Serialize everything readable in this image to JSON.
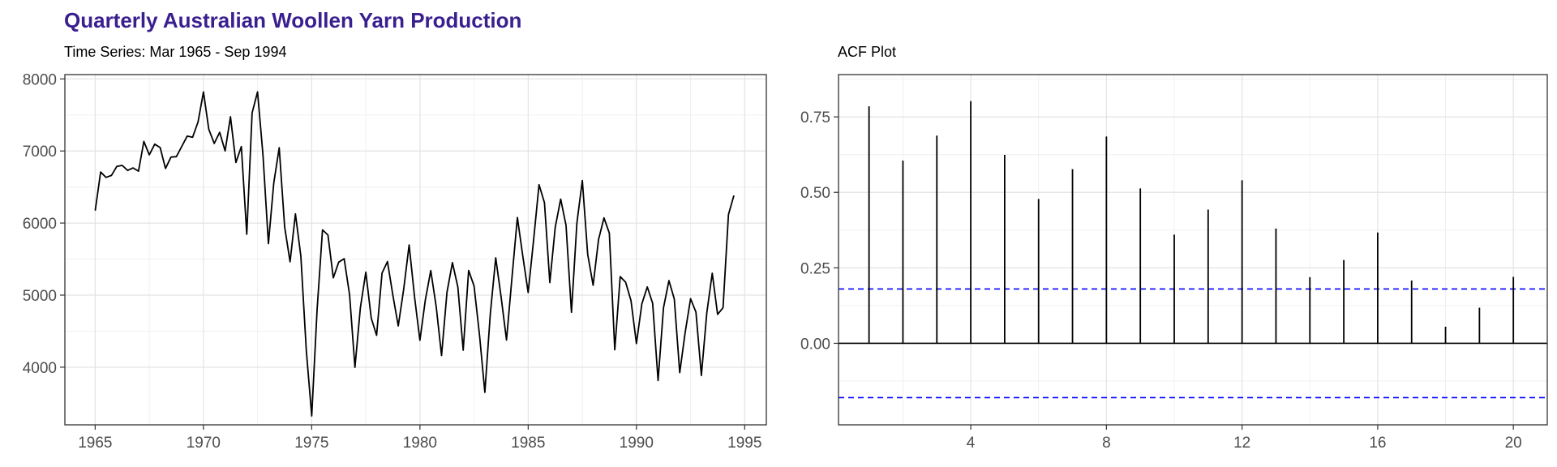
{
  "page_title": "Quarterly Australian Woollen Yarn Production",
  "chart_data": [
    {
      "type": "line",
      "subtitle": "Time Series: Mar 1965 - Sep 1994",
      "xlim": [
        1963.6,
        1996.0
      ],
      "ylim": [
        3200,
        8060
      ],
      "xticks": [
        1965,
        1970,
        1975,
        1980,
        1985,
        1990,
        1995
      ],
      "yticks": [
        4000,
        5000,
        6000,
        7000,
        8000
      ],
      "grid": true,
      "x": [
        1965.0,
        1965.25,
        1965.5,
        1965.75,
        1966.0,
        1966.25,
        1966.5,
        1966.75,
        1967.0,
        1967.25,
        1967.5,
        1967.75,
        1968.0,
        1968.25,
        1968.5,
        1968.75,
        1969.0,
        1969.25,
        1969.5,
        1969.75,
        1970.0,
        1970.25,
        1970.5,
        1970.75,
        1971.0,
        1971.25,
        1971.5,
        1971.75,
        1972.0,
        1972.25,
        1972.5,
        1972.75,
        1973.0,
        1973.25,
        1973.5,
        1973.75,
        1974.0,
        1974.25,
        1974.5,
        1974.75,
        1975.0,
        1975.25,
        1975.5,
        1975.75,
        1976.0,
        1976.25,
        1976.5,
        1976.75,
        1977.0,
        1977.25,
        1977.5,
        1977.75,
        1978.0,
        1978.25,
        1978.5,
        1978.75,
        1979.0,
        1979.25,
        1979.5,
        1979.75,
        1980.0,
        1980.25,
        1980.5,
        1980.75,
        1981.0,
        1981.25,
        1981.5,
        1981.75,
        1982.0,
        1982.25,
        1982.5,
        1982.75,
        1983.0,
        1983.25,
        1983.5,
        1983.75,
        1984.0,
        1984.25,
        1984.5,
        1984.75,
        1985.0,
        1985.25,
        1985.5,
        1985.75,
        1986.0,
        1986.25,
        1986.5,
        1986.75,
        1987.0,
        1987.25,
        1987.5,
        1987.75,
        1988.0,
        1988.25,
        1988.5,
        1988.75,
        1989.0,
        1989.25,
        1989.5,
        1989.75,
        1990.0,
        1990.25,
        1990.5,
        1990.75,
        1991.0,
        1991.25,
        1991.5,
        1991.75,
        1992.0,
        1992.25,
        1992.5,
        1992.75,
        1993.0,
        1993.25,
        1993.5,
        1993.75,
        1994.0,
        1994.25,
        1994.5
      ],
      "y": [
        6172,
        6709,
        6633,
        6660,
        6786,
        6800,
        6730,
        6765,
        6720,
        7133,
        6946,
        7095,
        7047,
        6757,
        6915,
        6921,
        7064,
        7206,
        7190,
        7402,
        7819,
        7300,
        7105,
        7259,
        7001,
        7475,
        6840,
        7061,
        5845,
        7529,
        7819,
        6943,
        5714,
        6556,
        7045,
        5947,
        5463,
        6127,
        5540,
        4235,
        3324,
        4793,
        5906,
        5834,
        5240,
        5458,
        5505,
        5002,
        3999,
        4826,
        5318,
        4681,
        4442,
        5305,
        5466,
        4995,
        4573,
        5081,
        5696,
        4975,
        4373,
        4933,
        5341,
        4840,
        4162,
        5041,
        5451,
        5113,
        4236,
        5342,
        5126,
        4446,
        3651,
        4738,
        5517,
        4968,
        4377,
        5239,
        6077,
        5540,
        5036,
        5764,
        6532,
        6283,
        5174,
        5943,
        6332,
        5968,
        4762,
        6001,
        6591,
        5567,
        5137,
        5771,
        6072,
        5859,
        4242,
        5258,
        5179,
        4925,
        4328,
        4878,
        5114,
        4888,
        3815,
        4824,
        5201,
        4946,
        3925,
        4481,
        4951,
        4764,
        3885,
        4755,
        5304,
        4733,
        4825,
        6118,
        6383
      ]
    },
    {
      "type": "bar",
      "subtitle": "ACF Plot",
      "xlim": [
        0.1,
        21.0
      ],
      "ylim": [
        -0.27,
        0.89
      ],
      "xticks": [
        4,
        8,
        12,
        16,
        20
      ],
      "yticks": [
        0.0,
        0.25,
        0.5,
        0.75
      ],
      "ytick_labels": [
        "0.00",
        "0.25",
        "0.50",
        "0.75"
      ],
      "grid": true,
      "lags": [
        1,
        2,
        3,
        4,
        5,
        6,
        7,
        8,
        9,
        10,
        11,
        12,
        13,
        14,
        15,
        16,
        17,
        18,
        19,
        20
      ],
      "values": [
        0.785,
        0.605,
        0.688,
        0.802,
        0.624,
        0.478,
        0.577,
        0.685,
        0.513,
        0.36,
        0.443,
        0.54,
        0.38,
        0.219,
        0.276,
        0.367,
        0.208,
        0.055,
        0.118,
        0.22
      ],
      "confidence_bound": 0.18,
      "bound_color": "#0000ff"
    }
  ]
}
